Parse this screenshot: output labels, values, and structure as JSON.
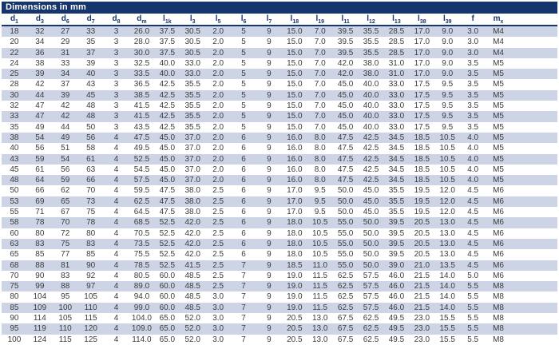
{
  "title": "Dimensions in mm",
  "colors": {
    "title_bar_bg": "#15356c",
    "title_text": "#ffffff",
    "header_text": "#15356c",
    "header_rule": "#15356c",
    "row_alt_bg": "#cdd4e5",
    "row_text": "#3c3c3c"
  },
  "table": {
    "columns": [
      {
        "base": "d",
        "sub": "1"
      },
      {
        "base": "d",
        "sub": "3"
      },
      {
        "base": "d",
        "sub": "6"
      },
      {
        "base": "d",
        "sub": "7"
      },
      {
        "base": "d",
        "sub": "8"
      },
      {
        "base": "d",
        "sub": "m"
      },
      {
        "base": "l",
        "sub": "1k"
      },
      {
        "base": "l",
        "sub": "3"
      },
      {
        "base": "l",
        "sub": "5"
      },
      {
        "base": "l",
        "sub": "6"
      },
      {
        "base": "l",
        "sub": "7"
      },
      {
        "base": "l",
        "sub": "18"
      },
      {
        "base": "l",
        "sub": "19"
      },
      {
        "base": "l",
        "sub": "11"
      },
      {
        "base": "l",
        "sub": "12"
      },
      {
        "base": "l",
        "sub": "13"
      },
      {
        "base": "l",
        "sub": "38"
      },
      {
        "base": "l",
        "sub": "39"
      },
      {
        "base": "f",
        "sub": ""
      },
      {
        "base": "m",
        "sub": "x"
      }
    ],
    "rows": [
      [
        "18",
        "32",
        "27",
        "33",
        "3",
        "26.0",
        "37.5",
        "30.5",
        "2.0",
        "5",
        "9",
        "15.0",
        "7.0",
        "39.5",
        "35.5",
        "28.5",
        "17.0",
        "9.0",
        "3.0",
        "M4"
      ],
      [
        "20",
        "34",
        "29",
        "35",
        "3",
        "28.0",
        "37.5",
        "30.5",
        "2.0",
        "5",
        "9",
        "15.0",
        "7.0",
        "39.5",
        "35.5",
        "28.5",
        "17.0",
        "9.0",
        "3.0",
        "M4"
      ],
      [
        "22",
        "36",
        "31",
        "37",
        "3",
        "30.0",
        "37.5",
        "30.5",
        "2.0",
        "5",
        "9",
        "15.0",
        "7.0",
        "39.5",
        "35.5",
        "28.5",
        "17.0",
        "9.0",
        "3.0",
        "M4"
      ],
      [
        "24",
        "38",
        "33",
        "39",
        "3",
        "32.5",
        "40.0",
        "33.0",
        "2.0",
        "5",
        "9",
        "15.0",
        "7.0",
        "42.0",
        "38.0",
        "31.0",
        "17.0",
        "9.0",
        "3.5",
        "M5"
      ],
      [
        "25",
        "39",
        "34",
        "40",
        "3",
        "33.5",
        "40.0",
        "33.0",
        "2.0",
        "5",
        "9",
        "15.0",
        "7.0",
        "42.0",
        "38.0",
        "31.0",
        "17.0",
        "9.0",
        "3.5",
        "M5"
      ],
      [
        "28",
        "42",
        "37",
        "43",
        "3",
        "36.5",
        "42.5",
        "35.5",
        "2.0",
        "5",
        "9",
        "15.0",
        "7.0",
        "45.0",
        "40.0",
        "33.0",
        "17.5",
        "9.5",
        "3.5",
        "M5"
      ],
      [
        "30",
        "44",
        "39",
        "45",
        "3",
        "38.5",
        "42.5",
        "35.5",
        "2.0",
        "5",
        "9",
        "15.0",
        "7.0",
        "45.0",
        "40.0",
        "33.0",
        "17.5",
        "9.5",
        "3.5",
        "M5"
      ],
      [
        "32",
        "47",
        "42",
        "48",
        "3",
        "41.5",
        "42.5",
        "35.5",
        "2.0",
        "5",
        "9",
        "15.0",
        "7.0",
        "45.0",
        "40.0",
        "33.0",
        "17.5",
        "9.5",
        "3.5",
        "M5"
      ],
      [
        "33",
        "47",
        "42",
        "48",
        "3",
        "41.5",
        "42.5",
        "35.5",
        "2.0",
        "5",
        "9",
        "15.0",
        "7.0",
        "45.0",
        "40.0",
        "33.0",
        "17.5",
        "9.5",
        "3.5",
        "M5"
      ],
      [
        "35",
        "49",
        "44",
        "50",
        "3",
        "43.5",
        "42.5",
        "35.5",
        "2.0",
        "5",
        "9",
        "15.0",
        "7.0",
        "45.0",
        "40.0",
        "33.0",
        "17.5",
        "9.5",
        "3.5",
        "M5"
      ],
      [
        "38",
        "54",
        "49",
        "56",
        "4",
        "47.5",
        "45.0",
        "37.0",
        "2.0",
        "6",
        "9",
        "16.0",
        "8.0",
        "47.5",
        "42.5",
        "34.5",
        "18.5",
        "10.5",
        "4.0",
        "M5"
      ],
      [
        "40",
        "56",
        "51",
        "58",
        "4",
        "49.5",
        "45.0",
        "37.0",
        "2.0",
        "6",
        "9",
        "16.0",
        "8.0",
        "47.5",
        "42.5",
        "34.5",
        "18.5",
        "10.5",
        "4.0",
        "M5"
      ],
      [
        "43",
        "59",
        "54",
        "61",
        "4",
        "52.5",
        "45.0",
        "37.0",
        "2.0",
        "6",
        "9",
        "16.0",
        "8.0",
        "47.5",
        "42.5",
        "34.5",
        "18.5",
        "10.5",
        "4.0",
        "M5"
      ],
      [
        "45",
        "61",
        "56",
        "63",
        "4",
        "54.5",
        "45.0",
        "37.0",
        "2.0",
        "6",
        "9",
        "16.0",
        "8.0",
        "47.5",
        "42.5",
        "34.5",
        "18.5",
        "10.5",
        "4.0",
        "M5"
      ],
      [
        "48",
        "64",
        "59",
        "66",
        "4",
        "57.5",
        "45.0",
        "37.0",
        "2.0",
        "6",
        "9",
        "16.0",
        "8.0",
        "47.5",
        "42.5",
        "34.5",
        "18.5",
        "10.5",
        "4.0",
        "M5"
      ],
      [
        "50",
        "66",
        "62",
        "70",
        "4",
        "59.5",
        "47.5",
        "38.0",
        "2.5",
        "6",
        "9",
        "17.0",
        "9.5",
        "50.0",
        "45.0",
        "35.5",
        "19.5",
        "12.0",
        "4.5",
        "M6"
      ],
      [
        "53",
        "69",
        "65",
        "73",
        "4",
        "62.5",
        "47.5",
        "38.0",
        "2.5",
        "6",
        "9",
        "17.0",
        "9.5",
        "50.0",
        "45.0",
        "35.5",
        "19.5",
        "12.0",
        "4.5",
        "M6"
      ],
      [
        "55",
        "71",
        "67",
        "75",
        "4",
        "64.5",
        "47.5",
        "38.0",
        "2.5",
        "6",
        "9",
        "17.0",
        "9.5",
        "50.0",
        "45.0",
        "35.5",
        "19.5",
        "12.0",
        "4.5",
        "M6"
      ],
      [
        "58",
        "78",
        "70",
        "78",
        "4",
        "68.5",
        "52.5",
        "42.0",
        "2.5",
        "6",
        "9",
        "18.0",
        "10.5",
        "55.0",
        "50.0",
        "39.5",
        "20.5",
        "13.0",
        "4.5",
        "M6"
      ],
      [
        "60",
        "80",
        "72",
        "80",
        "4",
        "70.5",
        "52.5",
        "42.0",
        "2.5",
        "6",
        "9",
        "18.0",
        "10.5",
        "55.0",
        "50.0",
        "39.5",
        "20.5",
        "13.0",
        "4.5",
        "M6"
      ],
      [
        "63",
        "83",
        "75",
        "83",
        "4",
        "73.5",
        "52.5",
        "42.0",
        "2.5",
        "6",
        "9",
        "18.0",
        "10.5",
        "55.0",
        "50.0",
        "39.5",
        "20.5",
        "13.0",
        "4.5",
        "M6"
      ],
      [
        "65",
        "85",
        "77",
        "85",
        "4",
        "75.5",
        "52.5",
        "42.0",
        "2.5",
        "6",
        "9",
        "18.0",
        "10.5",
        "55.0",
        "50.0",
        "39.5",
        "20.5",
        "13.0",
        "4.5",
        "M6"
      ],
      [
        "68",
        "88",
        "81",
        "90",
        "4",
        "78.5",
        "52.5",
        "41.5",
        "2.5",
        "7",
        "9",
        "18.5",
        "11.0",
        "55.0",
        "50.0",
        "39.0",
        "21.0",
        "13.5",
        "4.5",
        "M6"
      ],
      [
        "70",
        "90",
        "83",
        "92",
        "4",
        "80.5",
        "60.0",
        "48.5",
        "2.5",
        "7",
        "9",
        "19.0",
        "11.5",
        "62.5",
        "57.5",
        "46.0",
        "21.5",
        "14.0",
        "5.0",
        "M6"
      ],
      [
        "75",
        "99",
        "88",
        "97",
        "4",
        "89.0",
        "60.0",
        "48.5",
        "2.5",
        "7",
        "9",
        "19.0",
        "11.5",
        "62.5",
        "57.5",
        "46.0",
        "21.5",
        "14.0",
        "5.5",
        "M8"
      ],
      [
        "80",
        "104",
        "95",
        "105",
        "4",
        "94.0",
        "60.0",
        "48.5",
        "3.0",
        "7",
        "9",
        "19.0",
        "11.5",
        "62.5",
        "57.5",
        "46.0",
        "21.5",
        "14.0",
        "5.5",
        "M8"
      ],
      [
        "85",
        "109",
        "100",
        "110",
        "4",
        "99.0",
        "60.0",
        "48.5",
        "3.0",
        "7",
        "9",
        "19.0",
        "11.5",
        "62.5",
        "57.5",
        "46.0",
        "21.5",
        "14.0",
        "5.5",
        "M8"
      ],
      [
        "90",
        "114",
        "105",
        "115",
        "4",
        "104.0",
        "65.0",
        "52.0",
        "3.0",
        "7",
        "9",
        "20.5",
        "13.0",
        "67.5",
        "62.5",
        "49.5",
        "23.0",
        "15.5",
        "5.5",
        "M8"
      ],
      [
        "95",
        "119",
        "110",
        "120",
        "4",
        "109.0",
        "65.0",
        "52.0",
        "3.0",
        "7",
        "9",
        "20.5",
        "13.0",
        "67.5",
        "62.5",
        "49.5",
        "23.0",
        "15.5",
        "5.5",
        "M8"
      ],
      [
        "100",
        "124",
        "115",
        "125",
        "4",
        "114.0",
        "65.0",
        "52.0",
        "3.0",
        "7",
        "9",
        "20.5",
        "13.0",
        "67.5",
        "62.5",
        "49.5",
        "23.0",
        "15.5",
        "5.5",
        "M8"
      ]
    ]
  }
}
